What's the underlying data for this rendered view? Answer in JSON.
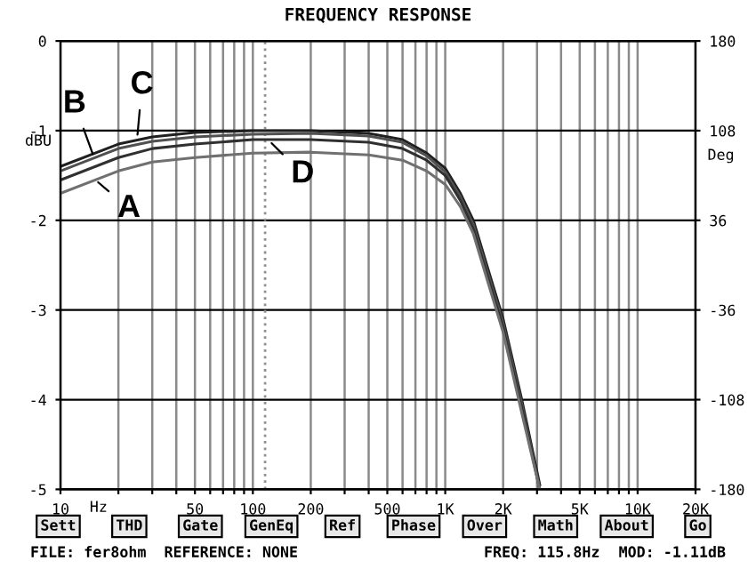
{
  "chart_data": {
    "type": "line",
    "title": "FREQUENCY RESPONSE",
    "xlabel": "Hz",
    "ylabel": "dBU",
    "y2label": "Deg",
    "x": [
      10,
      20,
      30,
      50,
      100,
      200,
      400,
      600,
      800,
      1000,
      1200,
      1400,
      1700,
      2000,
      2500,
      3100
    ],
    "series": [
      {
        "color": "#202020",
        "values": [
          -1.4,
          -1.15,
          -1.07,
          -1.02,
          -1.0,
          -1.0,
          -1.03,
          -1.1,
          -1.25,
          -1.42,
          -1.7,
          -2.0,
          -2.6,
          -3.1,
          -4.0,
          -4.95
        ]
      },
      {
        "color": "#505050",
        "values": [
          -1.45,
          -1.2,
          -1.12,
          -1.07,
          -1.04,
          -1.03,
          -1.06,
          -1.13,
          -1.28,
          -1.46,
          -1.74,
          -2.05,
          -2.65,
          -3.15,
          -4.05,
          -5.0
        ]
      },
      {
        "color": "#303030",
        "values": [
          -1.55,
          -1.3,
          -1.2,
          -1.15,
          -1.1,
          -1.1,
          -1.13,
          -1.2,
          -1.33,
          -1.5,
          -1.78,
          -2.1,
          -2.7,
          -3.2,
          -4.1,
          -5.0
        ]
      },
      {
        "color": "#707070",
        "values": [
          -1.7,
          -1.45,
          -1.35,
          -1.3,
          -1.25,
          -1.24,
          -1.27,
          -1.33,
          -1.45,
          -1.6,
          -1.85,
          -2.15,
          -2.75,
          -3.25,
          -4.15,
          -5.0
        ]
      }
    ],
    "log": "x",
    "xlim": [
      10,
      20000
    ],
    "ylim": [
      -5,
      0
    ],
    "y2lim": [
      -180,
      180
    ],
    "xticks": [
      10,
      {
        "value": 20,
        "label": null
      },
      {
        "value": 30,
        "label": null
      },
      {
        "value": 40,
        "label": null
      },
      50,
      {
        "value": 60,
        "label": null
      },
      {
        "value": 70,
        "label": null
      },
      {
        "value": 80,
        "label": null
      },
      {
        "value": 90,
        "label": null
      },
      100,
      200,
      {
        "value": 300,
        "label": null
      },
      {
        "value": 400,
        "label": null
      },
      500,
      {
        "value": 600,
        "label": null
      },
      {
        "value": 700,
        "label": null
      },
      {
        "value": 800,
        "label": null
      },
      {
        "value": 900,
        "label": null
      },
      {
        "value": 1000,
        "label": "1K"
      },
      {
        "value": 2000,
        "label": "2K"
      },
      {
        "value": 3000,
        "label": null
      },
      {
        "value": 4000,
        "label": null
      },
      {
        "value": 5000,
        "label": "5K"
      },
      {
        "value": 6000,
        "label": null
      },
      {
        "value": 7000,
        "label": null
      },
      {
        "value": 8000,
        "label": null
      },
      {
        "value": 9000,
        "label": null
      },
      {
        "value": 10000,
        "label": "10K"
      },
      {
        "value": 20000,
        "label": "20K"
      }
    ],
    "yticks": [
      0,
      -1,
      -2,
      -3,
      -4,
      -5
    ],
    "y2ticks": [
      180,
      108,
      36,
      -36,
      -108,
      -180
    ],
    "grid": true,
    "line_style": "solid",
    "marker": "none",
    "ref_lines": [
      {
        "axis": "x",
        "value": 115.8,
        "color": "#909090",
        "line_style": "dotted"
      }
    ],
    "annotations": [
      {
        "text": "A",
        "x": 15,
        "y": -1.54
      },
      {
        "text": "B",
        "x": 15,
        "y": -1.31
      },
      {
        "text": "C",
        "x": 25,
        "y": -1.1
      },
      {
        "text": "D",
        "x": 120,
        "y": -1.1
      },
      "Sett",
      "THD",
      "Gate",
      "GenEq",
      "Ref",
      "Phase",
      "Over",
      "Math",
      "About",
      "Go",
      "FILE: fer8ohm  REFERENCE: NONE",
      "FREQ: 115.8Hz",
      "MOD: -1.11dB"
    ]
  }
}
